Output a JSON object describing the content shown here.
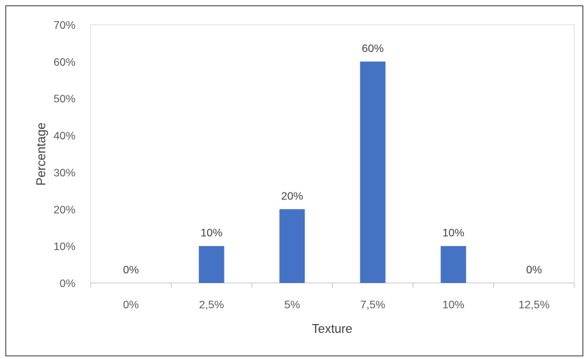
{
  "chart_data": {
    "type": "bar",
    "categories": [
      "0%",
      "2,5%",
      "5%",
      "7,5%",
      "10%",
      "12,5%"
    ],
    "values": [
      0,
      10,
      20,
      60,
      10,
      0
    ],
    "data_labels": [
      "0%",
      "10%",
      "20%",
      "60%",
      "10%",
      "0%"
    ],
    "y_ticks": [
      0,
      10,
      20,
      30,
      40,
      50,
      60,
      70
    ],
    "y_tick_labels": [
      "0%",
      "10%",
      "20%",
      "30%",
      "40%",
      "50%",
      "60%",
      "70%"
    ],
    "ylim": [
      0,
      70
    ],
    "xlabel": "Texture",
    "ylabel": "Percentage",
    "grid": false,
    "legend": "none",
    "bar_color": "#4472C4"
  }
}
